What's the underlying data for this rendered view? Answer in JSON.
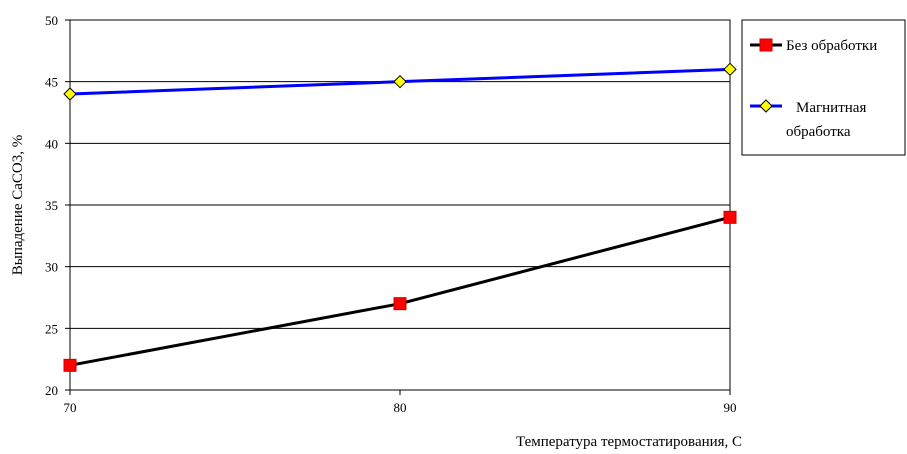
{
  "chart_data": {
    "type": "line",
    "title": "",
    "xlabel": "Температура термостатирования,  С",
    "ylabel": "Выпадение СаСО3, %",
    "x": [
      70,
      80,
      90
    ],
    "xlim": [
      70,
      90
    ],
    "x_ticks": [
      "70",
      "80",
      "90"
    ],
    "ylim": [
      20,
      50
    ],
    "y_ticks": [
      "20",
      "25",
      "30",
      "35",
      "40",
      "45",
      "50"
    ],
    "grid": "horizontal",
    "legend_position": "top-right, outside plot",
    "series": [
      {
        "name": "Без обработки",
        "values": [
          22,
          27,
          34
        ],
        "color": "#000000",
        "marker": "square",
        "marker_color": "#ff0000"
      },
      {
        "name": "Магнитная обработка",
        "name_lines": [
          "Магнитная",
          "обработка"
        ],
        "values": [
          44,
          45,
          46
        ],
        "color": "#0000ff",
        "marker": "diamond",
        "marker_color": "#ffff00"
      }
    ]
  }
}
